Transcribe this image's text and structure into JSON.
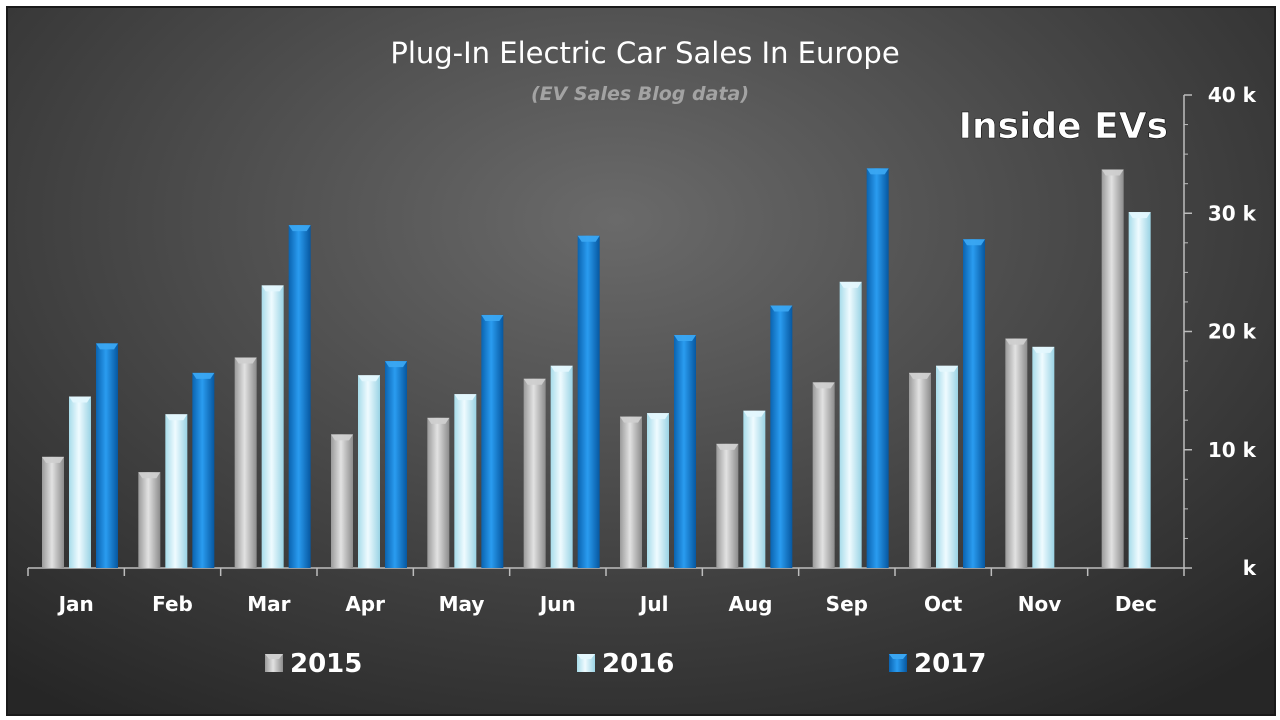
{
  "chart_data": {
    "type": "bar",
    "title": "Plug-In Electric Car Sales In Europe",
    "subtitle": "(EV Sales Blog data)",
    "brand": "Inside EVs",
    "xlabel": "",
    "ylabel": "",
    "categories": [
      "Jan",
      "Feb",
      "Mar",
      "Apr",
      "May",
      "Jun",
      "Jul",
      "Aug",
      "Sep",
      "Oct",
      "Nov",
      "Dec"
    ],
    "series": [
      {
        "name": "2015",
        "values": [
          9400,
          8100,
          17800,
          11300,
          12700,
          16000,
          12800,
          10500,
          15700,
          16500,
          19400,
          33700
        ]
      },
      {
        "name": "2016",
        "values": [
          14500,
          13000,
          23900,
          16300,
          14700,
          17100,
          13100,
          13300,
          24200,
          17100,
          18700,
          30100
        ]
      },
      {
        "name": "2017",
        "values": [
          19000,
          16500,
          29000,
          17500,
          21400,
          28100,
          19700,
          22200,
          33800,
          27800,
          null,
          null
        ]
      }
    ],
    "ylim": [
      0,
      40000
    ],
    "yticks": [
      0,
      10000,
      20000,
      30000,
      40000
    ],
    "ytick_labels": [
      "k",
      "10 k",
      "20 k",
      "30 k",
      "40 k"
    ],
    "y_axis_position": "right",
    "grid": false,
    "legend_position": "bottom",
    "colors": {
      "2015": "#b8b8b8",
      "2016": "#c8ecf6",
      "2017": "#1383d6"
    }
  }
}
